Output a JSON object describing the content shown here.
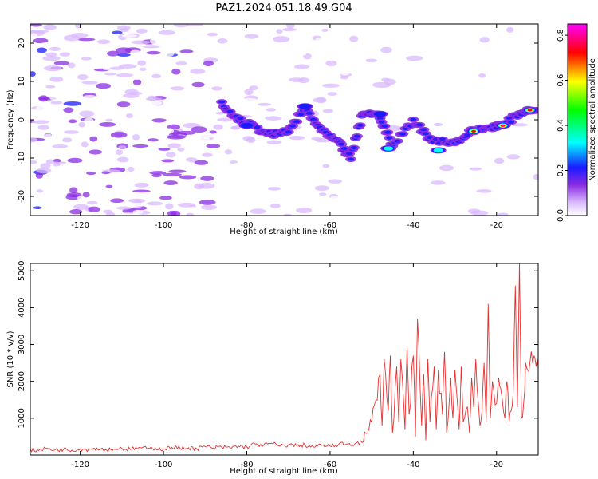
{
  "title": "PAZ1.2024.051.18.49.G04",
  "colors": {
    "snr_line": "#e83030",
    "colormap": [
      "#ffffff",
      "#d9b8ff",
      "#8a2be2",
      "#1a1aff",
      "#00ffff",
      "#00ff00",
      "#ffff00",
      "#ff0000",
      "#ff00ff"
    ]
  },
  "chart_data": [
    {
      "type": "heatmap",
      "xlabel": "Height of straight line (km)",
      "ylabel": "Frequency (Hz)",
      "xlim": [
        -132,
        -10
      ],
      "ylim": [
        -25,
        25
      ],
      "xticks": [
        -120,
        -100,
        -80,
        -60,
        -40,
        -20
      ],
      "yticks": [
        -20,
        -10,
        0,
        10,
        20
      ],
      "colorbar": {
        "label": "Normalized spectral amplitude",
        "range": [
          0,
          0.85
        ],
        "ticks": [
          "0.0",
          "0.2",
          "0.4",
          "0.6",
          "0.8"
        ]
      },
      "ridge": [
        {
          "x": -86,
          "y": 4
        },
        {
          "x": -82,
          "y": 0
        },
        {
          "x": -78,
          "y": -2
        },
        {
          "x": -74,
          "y": -4
        },
        {
          "x": -70,
          "y": -3
        },
        {
          "x": -66,
          "y": 3
        },
        {
          "x": -62,
          "y": -3
        },
        {
          "x": -58,
          "y": -6
        },
        {
          "x": -55,
          "y": -10
        },
        {
          "x": -52,
          "y": 2
        },
        {
          "x": -48,
          "y": 1
        },
        {
          "x": -45,
          "y": -7
        },
        {
          "x": -40,
          "y": 0
        },
        {
          "x": -36,
          "y": -5
        },
        {
          "x": -30,
          "y": -6
        },
        {
          "x": -26,
          "y": -3
        },
        {
          "x": -22,
          "y": -2
        },
        {
          "x": -18,
          "y": -1
        },
        {
          "x": -14,
          "y": 2
        },
        {
          "x": -10,
          "y": 3
        }
      ],
      "hotspots": [
        {
          "x": -18.5,
          "y": -1.5,
          "amp": 0.85
        },
        {
          "x": -25.5,
          "y": -3,
          "amp": 0.8
        },
        {
          "x": -12,
          "y": 2.5,
          "amp": 0.8
        },
        {
          "x": -46,
          "y": -7.5,
          "amp": 0.5
        },
        {
          "x": -34,
          "y": -8,
          "amp": 0.5
        },
        {
          "x": -80,
          "y": -1.5,
          "amp": 0.4
        },
        {
          "x": -48,
          "y": 1.5,
          "amp": 0.4
        },
        {
          "x": -66,
          "y": 3.5,
          "amp": 0.35
        }
      ]
    },
    {
      "type": "line",
      "xlabel": "Height of straight line (km)",
      "ylabel": "SNR (10 * v/v)",
      "xlim": [
        -132,
        -10
      ],
      "ylim": [
        0,
        5200
      ],
      "xticks": [
        -120,
        -100,
        -80,
        -60,
        -40,
        -20
      ],
      "yticks": [
        1000,
        2000,
        3000,
        4000,
        5000
      ],
      "series": [
        {
          "x": [
            -132,
            -130,
            -128,
            -126,
            -124,
            -122,
            -120,
            -118,
            -116,
            -114,
            -112,
            -110,
            -108,
            -106,
            -104,
            -102,
            -100,
            -98,
            -96,
            -94,
            -92,
            -90,
            -88,
            -86,
            -84,
            -82,
            -80,
            -78,
            -76,
            -74,
            -72,
            -70,
            -68,
            -66,
            -64,
            -62,
            -60,
            -58,
            -56,
            -54,
            -52,
            -51,
            -50,
            -49,
            -48,
            -47.5,
            -47,
            -46,
            -45.5,
            -45,
            -44,
            -43.5,
            -43,
            -42,
            -41.5,
            -41,
            -40,
            -39.5,
            -39,
            -38,
            -37.5,
            -37,
            -36.5,
            -36,
            -35,
            -34.5,
            -34,
            -33,
            -32.5,
            -32,
            -31,
            -30.5,
            -30,
            -29,
            -28.5,
            -28,
            -27,
            -26.5,
            -26,
            -25.5,
            -25,
            -24,
            -23.5,
            -23,
            -22.5,
            -22,
            -21.5,
            -21,
            -20,
            -19.5,
            -19,
            -18,
            -17.5,
            -17,
            -16.5,
            -16,
            -15.5,
            -15,
            -14.5,
            -14,
            -13.5,
            -13,
            -12.5,
            -12,
            -11,
            -10.5,
            -10
          ],
          "y": [
            150,
            120,
            180,
            140,
            160,
            130,
            170,
            150,
            190,
            140,
            160,
            180,
            150,
            200,
            170,
            190,
            160,
            210,
            180,
            200,
            170,
            230,
            190,
            210,
            200,
            240,
            220,
            300,
            260,
            320,
            240,
            280,
            250,
            270,
            220,
            260,
            240,
            280,
            300,
            310,
            360,
            600,
            900,
            1500,
            2200,
            800,
            2600,
            1200,
            2700,
            600,
            2400,
            900,
            2600,
            700,
            2900,
            1100,
            2700,
            500,
            3700,
            800,
            2200,
            400,
            2600,
            900,
            2400,
            700,
            2300,
            1100,
            2800,
            600,
            2100,
            1000,
            2300,
            700,
            2400,
            900,
            1300,
            600,
            2100,
            1300,
            2600,
            800,
            1200,
            2500,
            900,
            4100,
            1000,
            2000,
            1400,
            2100,
            1800,
            1000,
            2000,
            900,
            1200,
            1700,
            4600,
            1300,
            5200,
            1000,
            1400,
            2500,
            2300,
            2500,
            2700,
            2400,
            2400
          ]
        }
      ]
    }
  ]
}
